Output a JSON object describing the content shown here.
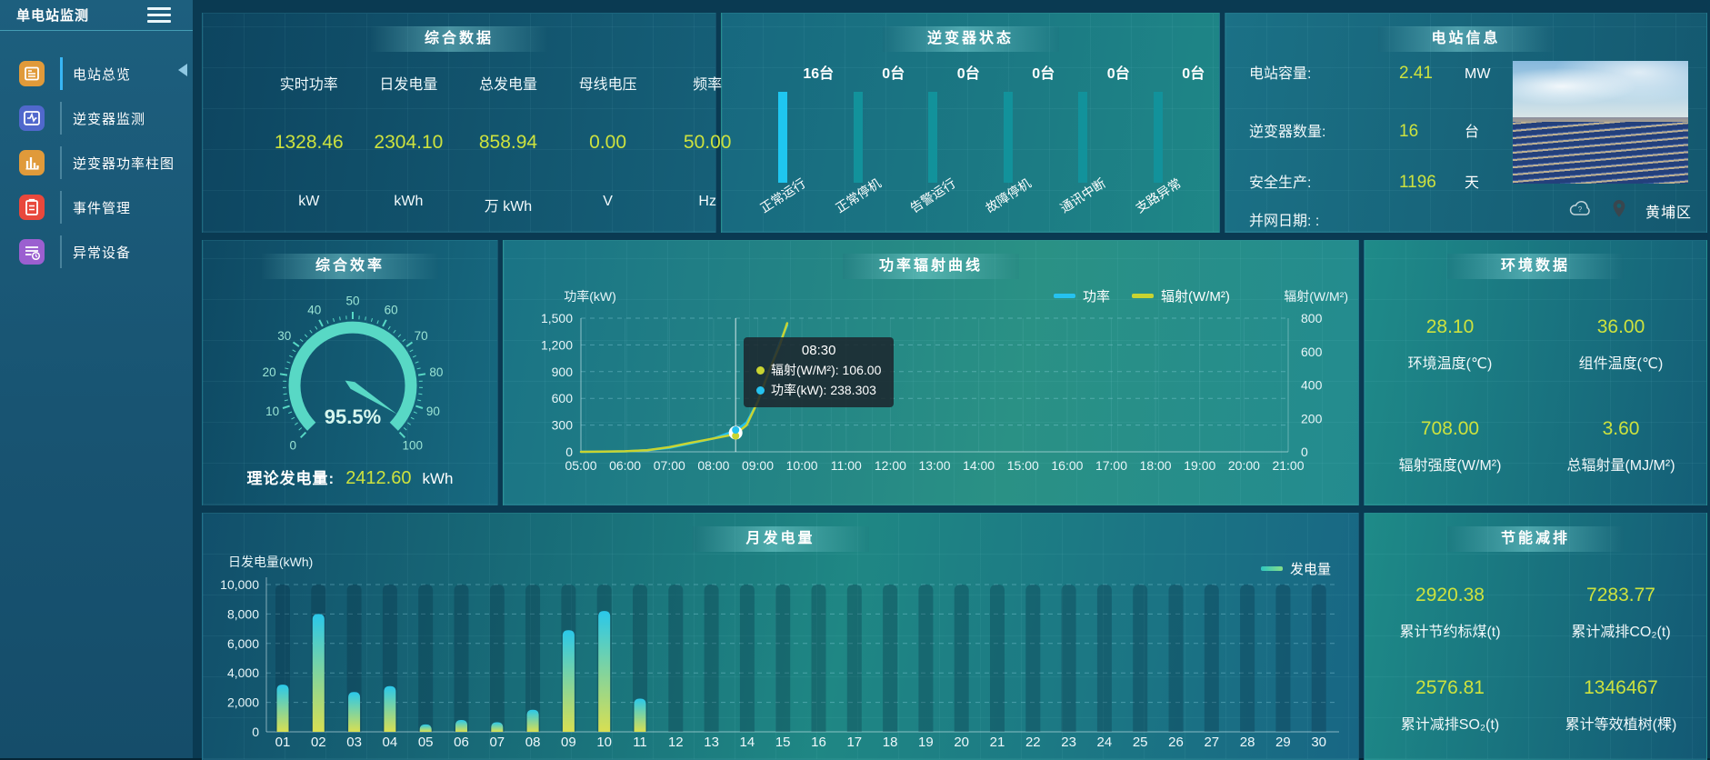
{
  "app": {
    "title": "单电站监测"
  },
  "sidebar": {
    "items": [
      {
        "label": "电站总览",
        "icon": "overview-news-icon",
        "color": "#e09a3a",
        "active": true
      },
      {
        "label": "逆变器监测",
        "icon": "inverter-monitor-icon",
        "color": "#5068cc",
        "active": false
      },
      {
        "label": "逆变器功率柱图",
        "icon": "power-bars-icon",
        "color": "#e09a3a",
        "active": false
      },
      {
        "label": "事件管理",
        "icon": "event-clipboard-icon",
        "color": "#e8483c",
        "active": false
      },
      {
        "label": "异常设备",
        "icon": "abnormal-device-icon",
        "color": "#9b5fd0",
        "active": false
      }
    ]
  },
  "summary": {
    "title": "综合数据",
    "stats": [
      {
        "label": "实时功率",
        "value": "1328.46",
        "unit": "kW"
      },
      {
        "label": "日发电量",
        "value": "2304.10",
        "unit": "kWh"
      },
      {
        "label": "总发电量",
        "value": "858.94",
        "unit": "万 kWh"
      },
      {
        "label": "母线电压",
        "value": "0.00",
        "unit": "V"
      },
      {
        "label": "频率",
        "value": "50.00",
        "unit": "Hz"
      }
    ]
  },
  "inverter_status": {
    "title": "逆变器状态",
    "items": [
      {
        "count": "16台",
        "label": "正常运行",
        "highlight": true
      },
      {
        "count": "0台",
        "label": "正常停机",
        "highlight": false
      },
      {
        "count": "0台",
        "label": "告警运行",
        "highlight": false
      },
      {
        "count": "0台",
        "label": "故障停机",
        "highlight": false
      },
      {
        "count": "0台",
        "label": "通讯中断",
        "highlight": false
      },
      {
        "count": "0台",
        "label": "支路异常",
        "highlight": false
      }
    ]
  },
  "station_info": {
    "title": "电站信息",
    "rows": [
      {
        "label": "电站容量:",
        "value": "2.41",
        "unit": "MW"
      },
      {
        "label": "逆变器数量:",
        "value": "16",
        "unit": "台"
      },
      {
        "label": "安全生产:",
        "value": "1196",
        "unit": "天"
      },
      {
        "label": "并网日期: :",
        "value": "",
        "unit": ""
      }
    ],
    "location": "黄埔区"
  },
  "efficiency": {
    "title": "综合效率",
    "footer_label": "理论发电量:",
    "footer_value": "2412.60",
    "footer_unit": "kWh"
  },
  "power_curve": {
    "title": "功率辐射曲线"
  },
  "environment": {
    "title": "环境数据",
    "stats": [
      {
        "value": "28.10",
        "label": "环境温度(℃)"
      },
      {
        "value": "36.00",
        "label": "组件温度(℃)"
      },
      {
        "value": "708.00",
        "label": "辐射强度(W/M²)"
      },
      {
        "value": "3.60",
        "label": "总辐射量(MJ/M²)"
      }
    ]
  },
  "monthly": {
    "title": "月发电量"
  },
  "energy_saving": {
    "title": "节能减排",
    "stats": [
      {
        "value": "2920.38",
        "label": "累计节约标煤(t)"
      },
      {
        "value": "7283.77",
        "label": "累计减排CO₂(t)"
      },
      {
        "value": "2576.81",
        "label": "累计减排SO₂(t)"
      },
      {
        "value": "1346467",
        "label": "累计等效植树(棵)"
      }
    ]
  },
  "chart_data": [
    {
      "type": "gauge",
      "title": "综合效率",
      "value": 95.5,
      "min": 0,
      "max": 100,
      "unit": "%",
      "tick_labels": [
        0,
        10,
        20,
        30,
        40,
        50,
        60,
        70,
        80,
        90,
        100
      ],
      "color": "#58d8c5"
    },
    {
      "type": "line",
      "title": "功率辐射曲线",
      "x_ticks": [
        "05:00",
        "06:00",
        "07:00",
        "08:00",
        "09:00",
        "10:00",
        "11:00",
        "12:00",
        "13:00",
        "14:00",
        "15:00",
        "16:00",
        "17:00",
        "18:00",
        "19:00",
        "20:00",
        "21:00"
      ],
      "yleft": {
        "title": "功率(kW)",
        "ticks": [
          "0",
          "300",
          "600",
          "900",
          "1,200",
          "1,500"
        ],
        "max": 1500
      },
      "yright": {
        "title": "辐射(W/M²)",
        "ticks": [
          "0",
          "200",
          "400",
          "600",
          "800"
        ],
        "max": 800
      },
      "series": [
        {
          "name": "功率",
          "color": "#25c2ef",
          "axis": "left",
          "points": [
            [
              "05:00",
              0
            ],
            [
              "05:30",
              1
            ],
            [
              "06:00",
              5
            ],
            [
              "06:30",
              18
            ],
            [
              "07:00",
              45
            ],
            [
              "07:30",
              95
            ],
            [
              "08:00",
              150
            ],
            [
              "08:30",
              238.303
            ],
            [
              "08:45",
              330
            ],
            [
              "09:00",
              560
            ],
            [
              "09:15",
              900
            ],
            [
              "09:30",
              1230
            ],
            [
              "09:40",
              1420
            ]
          ]
        },
        {
          "name": "辐射(W/M²)",
          "color": "#c9d431",
          "axis": "right",
          "points": [
            [
              "05:00",
              0
            ],
            [
              "05:30",
              1
            ],
            [
              "06:00",
              3
            ],
            [
              "06:30",
              10
            ],
            [
              "07:00",
              28
            ],
            [
              "07:30",
              55
            ],
            [
              "08:00",
              80
            ],
            [
              "08:30",
              106
            ],
            [
              "08:45",
              160
            ],
            [
              "09:00",
              300
            ],
            [
              "09:15",
              480
            ],
            [
              "09:30",
              640
            ],
            [
              "09:40",
              770
            ]
          ]
        }
      ],
      "tooltip": {
        "time": "08:30",
        "rows": [
          {
            "color": "#c9d431",
            "text": "辐射(W/M²): 106.00"
          },
          {
            "color": "#25c2ef",
            "text": "功率(kW): 238.303"
          }
        ]
      }
    },
    {
      "type": "bar",
      "title": "月发电量",
      "legend": "发电量",
      "ylabel": "日发电量(kWh)",
      "yticks": [
        "0",
        "2,000",
        "4,000",
        "6,000",
        "8,000",
        "10,000"
      ],
      "ymax": 10000,
      "categories": [
        "01",
        "02",
        "03",
        "04",
        "05",
        "06",
        "07",
        "08",
        "09",
        "10",
        "11",
        "12",
        "13",
        "14",
        "15",
        "16",
        "17",
        "18",
        "19",
        "20",
        "21",
        "22",
        "23",
        "24",
        "25",
        "26",
        "27",
        "28",
        "29",
        "30"
      ],
      "values": [
        3200,
        8000,
        2700,
        3100,
        500,
        800,
        650,
        1500,
        6900,
        8200,
        2250,
        0,
        0,
        0,
        0,
        0,
        0,
        0,
        0,
        0,
        0,
        0,
        0,
        0,
        0,
        0,
        0,
        0,
        0,
        0
      ]
    }
  ]
}
